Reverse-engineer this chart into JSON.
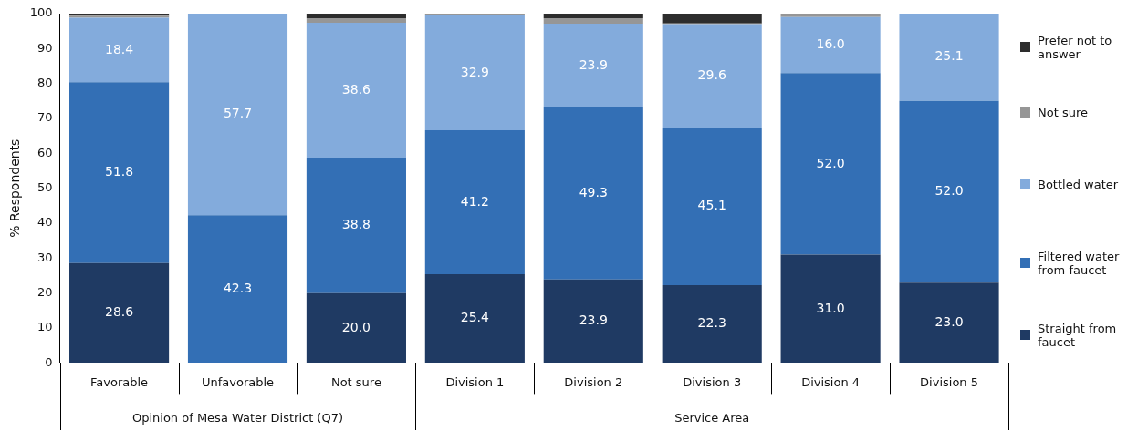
{
  "chart_data": {
    "type": "bar",
    "stacked": true,
    "ylabel": "% Respondents",
    "categories": [
      "Favorable",
      "Unfavorable",
      "Not sure",
      "Division 1",
      "Division 2",
      "Division 3",
      "Division 4",
      "Division 5"
    ],
    "series": [
      {
        "name": "Straight from faucet",
        "color": "#1f3a63",
        "values": [
          28.6,
          0,
          20.0,
          25.4,
          23.9,
          22.3,
          31.0,
          23.0
        ],
        "value_labels": [
          "28.6",
          null,
          "20.0",
          "25.4",
          "23.9",
          "22.3",
          "31.0",
          "23.0"
        ]
      },
      {
        "name": "Filtered water from faucet",
        "color": "#336fb5",
        "values": [
          51.8,
          42.3,
          38.8,
          41.2,
          49.3,
          45.1,
          52.0,
          52.0
        ],
        "value_labels": [
          "51.8",
          "42.3",
          "38.8",
          "41.2",
          "49.3",
          "45.1",
          "52.0",
          "52.0"
        ]
      },
      {
        "name": "Bottled water",
        "color": "#83abdc",
        "values": [
          18.4,
          57.7,
          38.6,
          32.9,
          23.9,
          29.6,
          16.0,
          25.1
        ],
        "value_labels": [
          "18.4",
          "57.7",
          "38.6",
          "32.9",
          "23.9",
          "29.6",
          "16.0",
          "25.1"
        ]
      },
      {
        "name": "Not sure",
        "color": "#969696",
        "values": [
          0.6,
          0,
          1.3,
          0.5,
          1.6,
          0.2,
          1.0,
          0
        ]
      },
      {
        "name": "Prefer not to answer",
        "color": "#2d2d2d",
        "values": [
          0.6,
          0,
          1.3,
          0,
          1.3,
          2.8,
          0,
          0
        ]
      }
    ],
    "ylim": [
      0,
      100
    ],
    "yticks": [
      0,
      10,
      20,
      30,
      40,
      50,
      60,
      70,
      80,
      90,
      100
    ],
    "grid": false,
    "legend": "right",
    "annotations": [
      "Opinion of Mesa Water District (Q7)",
      "Service Area"
    ]
  }
}
